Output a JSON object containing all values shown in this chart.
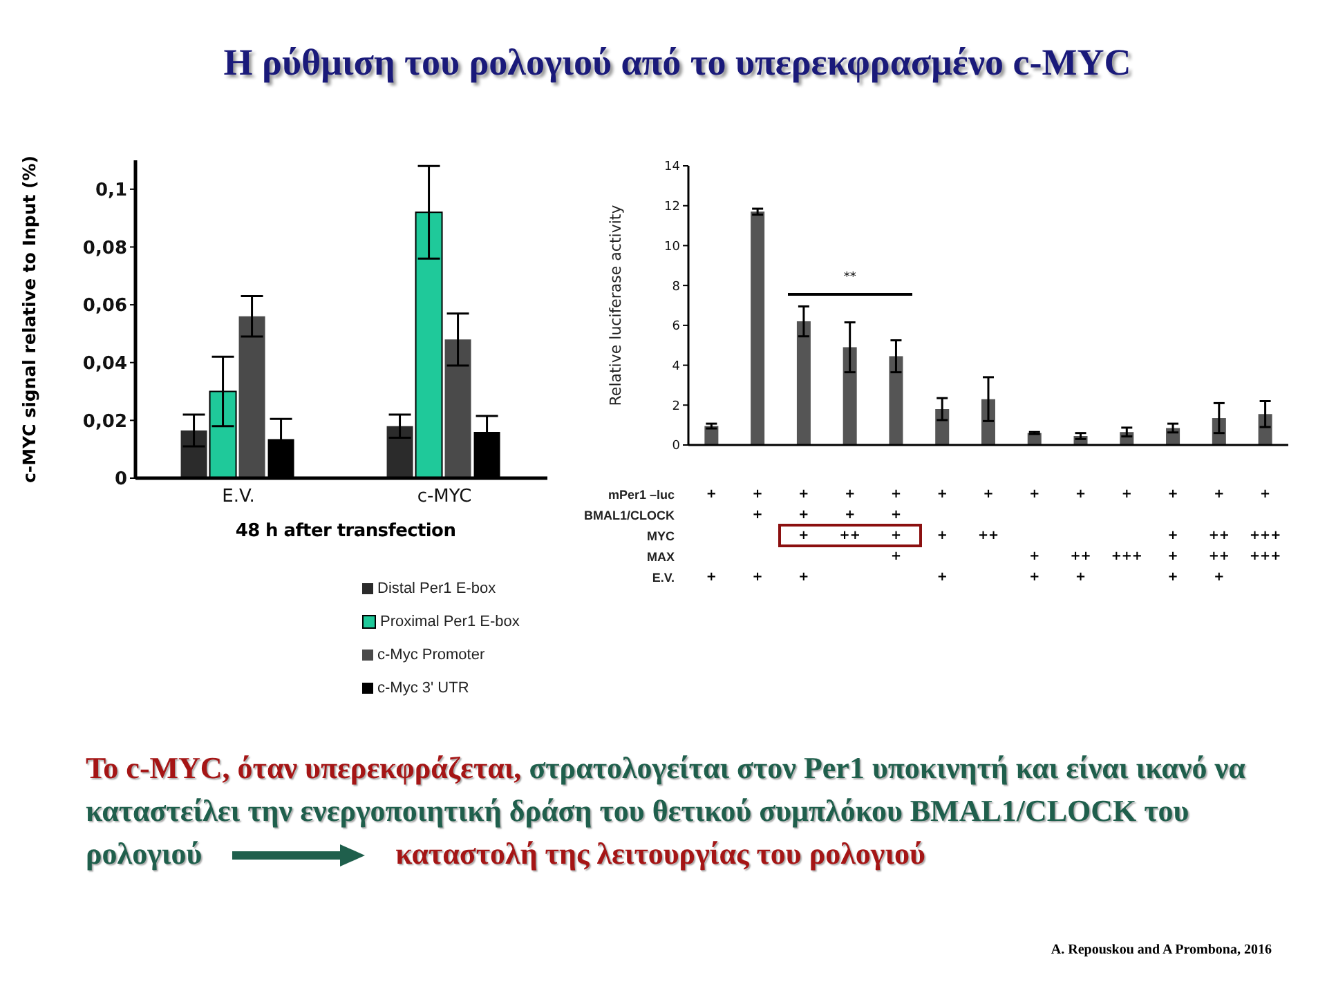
{
  "chart_data": [
    {
      "type": "bar",
      "title": "Η ρύθμιση του ρολογιού από το υπερεκφρασμένο c-MYC",
      "ylabel": "c-MYC signal relative to Input (%)",
      "xlabel": "48 h after transfection",
      "categories": [
        "E.V.",
        "c-MYC"
      ],
      "series": [
        {
          "name": "Distal Per1 E-box",
          "color": "#2b2b2b",
          "values": [
            0.0165,
            0.018
          ],
          "errors": [
            0.0055,
            0.004
          ]
        },
        {
          "name": "Proximal Per1 E-box",
          "color": "#1fc99a",
          "values": [
            0.03,
            0.092
          ],
          "errors": [
            0.012,
            0.016
          ]
        },
        {
          "name": "c-Myc Promoter",
          "color": "#4a4a4a",
          "values": [
            0.056,
            0.048
          ],
          "errors": [
            0.007,
            0.009
          ]
        },
        {
          "name": "c-Myc 3' UTR",
          "color": "#000000",
          "values": [
            0.0135,
            0.016
          ],
          "errors": [
            0.007,
            0.0055
          ]
        }
      ],
      "ylim": [
        0,
        0.11
      ],
      "yticks": [
        0,
        {
          "value": 0.02,
          "label": "0,02"
        },
        {
          "value": 0.04,
          "label": "0,04"
        },
        {
          "value": 0.06,
          "label": "0,06"
        },
        {
          "value": 0.08,
          "label": "0,08"
        },
        {
          "value": 0.1,
          "label": "0,1"
        }
      ],
      "legend": "bottom",
      "annotations": [
        "Το c-MYC, όταν υπερεκφράζεται,",
        "στρατολογείται στον Per1 υποκινητή και είναι ικανό να καταστείλει την ενεργοποιητική δράση του θετικού συμπλόκου BMAL1/CLOCK του ρολογιού",
        "καταστολή της λειτουργίας του ρολογιού",
        "A. Repouskou and A Prombona, 2016"
      ]
    },
    {
      "type": "bar",
      "ylabel": "Relative luciferase activity",
      "categories": [
        null,
        null,
        null,
        null,
        null,
        null,
        null,
        null,
        null,
        null,
        null,
        null,
        null
      ],
      "values": [
        0.95,
        11.7,
        6.2,
        4.9,
        4.45,
        1.8,
        2.3,
        0.6,
        0.45,
        0.65,
        0.85,
        1.35,
        1.55
      ],
      "errors": [
        0.12,
        0.15,
        0.75,
        1.25,
        0.8,
        0.55,
        1.1,
        0.05,
        0.15,
        0.22,
        0.22,
        0.75,
        0.65
      ],
      "color": "#555555",
      "ylim": [
        0,
        14
      ],
      "yticks": [
        0,
        2,
        4,
        6,
        8,
        10,
        12,
        14
      ],
      "annotations": [
        "**"
      ]
    },
    {
      "type": "other",
      "y_categories": [
        "mPer1 –luc",
        "BMAL1/CLOCK",
        "MYC",
        "MAX",
        "E.V."
      ],
      "cell_labels": [
        [
          "+",
          "+",
          "+",
          "+",
          "+",
          "+",
          "+",
          "+",
          "+",
          "+",
          "+",
          "+",
          "+"
        ],
        [
          null,
          "+",
          "+",
          "+",
          "+",
          null,
          null,
          null,
          null,
          null,
          null,
          null,
          null
        ],
        [
          null,
          null,
          "+",
          "++",
          "+",
          "+",
          "++",
          null,
          null,
          null,
          "+",
          "++",
          "+++"
        ],
        [
          null,
          null,
          null,
          null,
          "+",
          null,
          null,
          "+",
          "++",
          "+++",
          "+",
          "++",
          "+++"
        ],
        [
          "+",
          "+",
          "+",
          null,
          null,
          "+",
          null,
          "+",
          "+",
          null,
          "+",
          "+",
          null
        ]
      ]
    }
  ]
}
